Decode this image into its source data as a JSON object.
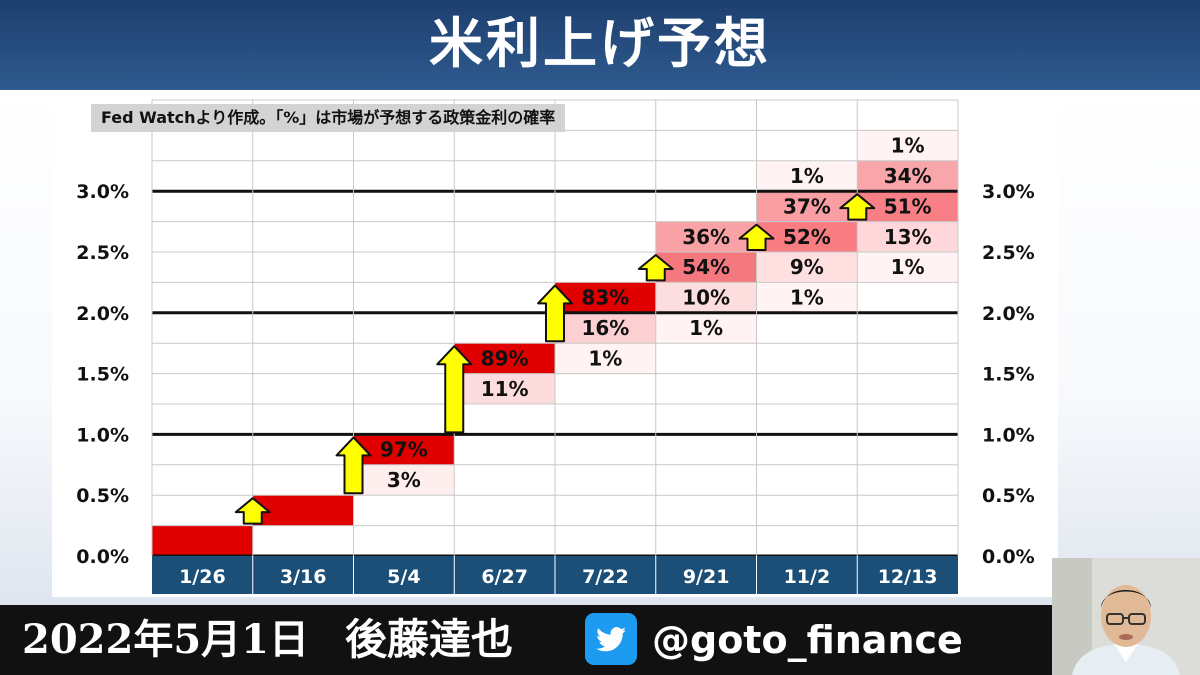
{
  "header": {
    "title": "米利上げ予想"
  },
  "note": "Fed Watchより作成。「%」は市場が予想する政策金利の確率",
  "footer": {
    "date": "2022年5月1日",
    "author": "後藤達也",
    "twitter_icon": "twitter-bird-icon",
    "handle": "@goto_finance"
  },
  "colors": {
    "header": "#1f4472",
    "axis_band": "#1b4f78",
    "arrow": "#ffff00",
    "cell_max": "#e00000",
    "footer": "#111111"
  },
  "chart_data": {
    "type": "heatmap",
    "title": "米利上げ予想",
    "meetings": [
      "1/26",
      "3/16",
      "5/4",
      "6/27",
      "7/22",
      "9/21",
      "11/2",
      "12/13"
    ],
    "y_ticks": [
      "0.0%",
      "0.5%",
      "1.0%",
      "1.5%",
      "2.0%",
      "2.5%",
      "3.0%"
    ],
    "y_range_percent": [
      0,
      3.75
    ],
    "band_width_percent": 0.25,
    "cells": [
      {
        "meeting": "1/26",
        "lower": 0.0,
        "upper": 0.25,
        "prob": 100,
        "label": ""
      },
      {
        "meeting": "3/16",
        "lower": 0.25,
        "upper": 0.5,
        "prob": 100,
        "label": ""
      },
      {
        "meeting": "5/4",
        "lower": 0.75,
        "upper": 1.0,
        "prob": 97,
        "label": "97%"
      },
      {
        "meeting": "5/4",
        "lower": 0.5,
        "upper": 0.75,
        "prob": 3,
        "label": "3%"
      },
      {
        "meeting": "6/27",
        "lower": 1.5,
        "upper": 1.75,
        "prob": 89,
        "label": "89%"
      },
      {
        "meeting": "6/27",
        "lower": 1.25,
        "upper": 1.5,
        "prob": 11,
        "label": "11%"
      },
      {
        "meeting": "7/22",
        "lower": 2.0,
        "upper": 2.25,
        "prob": 83,
        "label": "83%"
      },
      {
        "meeting": "7/22",
        "lower": 1.75,
        "upper": 2.0,
        "prob": 16,
        "label": "16%"
      },
      {
        "meeting": "7/22",
        "lower": 1.5,
        "upper": 1.75,
        "prob": 1,
        "label": "1%"
      },
      {
        "meeting": "9/21",
        "lower": 2.5,
        "upper": 2.75,
        "prob": 36,
        "label": "36%"
      },
      {
        "meeting": "9/21",
        "lower": 2.25,
        "upper": 2.5,
        "prob": 54,
        "label": "54%"
      },
      {
        "meeting": "9/21",
        "lower": 2.0,
        "upper": 2.25,
        "prob": 10,
        "label": "10%"
      },
      {
        "meeting": "9/21",
        "lower": 1.75,
        "upper": 2.0,
        "prob": 1,
        "label": "1%"
      },
      {
        "meeting": "11/2",
        "lower": 3.0,
        "upper": 3.25,
        "prob": 1,
        "label": "1%"
      },
      {
        "meeting": "11/2",
        "lower": 2.75,
        "upper": 3.0,
        "prob": 37,
        "label": "37%"
      },
      {
        "meeting": "11/2",
        "lower": 2.5,
        "upper": 2.75,
        "prob": 52,
        "label": "52%"
      },
      {
        "meeting": "11/2",
        "lower": 2.25,
        "upper": 2.5,
        "prob": 9,
        "label": "9%"
      },
      {
        "meeting": "11/2",
        "lower": 2.0,
        "upper": 2.25,
        "prob": 1,
        "label": "1%"
      },
      {
        "meeting": "12/13",
        "lower": 3.25,
        "upper": 3.5,
        "prob": 1,
        "label": "1%"
      },
      {
        "meeting": "12/13",
        "lower": 3.0,
        "upper": 3.25,
        "prob": 34,
        "label": "34%"
      },
      {
        "meeting": "12/13",
        "lower": 2.75,
        "upper": 3.0,
        "prob": 51,
        "label": "51%"
      },
      {
        "meeting": "12/13",
        "lower": 2.5,
        "upper": 2.75,
        "prob": 13,
        "label": "13%"
      },
      {
        "meeting": "12/13",
        "lower": 2.25,
        "upper": 2.5,
        "prob": 1,
        "label": "1%"
      }
    ],
    "arrows": [
      {
        "meeting": "3/16",
        "from": 0.25,
        "to": 0.5
      },
      {
        "meeting": "5/4",
        "from": 0.5,
        "to": 1.0
      },
      {
        "meeting": "6/27",
        "from": 1.0,
        "to": 1.75
      },
      {
        "meeting": "7/22",
        "from": 1.75,
        "to": 2.25
      },
      {
        "meeting": "9/21",
        "from": 2.25,
        "to": 2.5
      },
      {
        "meeting": "11/2",
        "from": 2.5,
        "to": 2.75
      },
      {
        "meeting": "12/13",
        "from": 2.75,
        "to": 3.0
      }
    ]
  }
}
